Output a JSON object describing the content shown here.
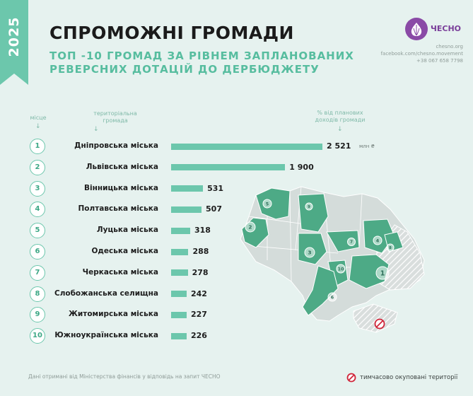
{
  "header": {
    "year": "2025",
    "title": "СПРОМОЖНІ ГРОМАДИ",
    "subtitle_line1": "ТОП -10 ГРОМАД ЗА РІВНЕМ ЗАПЛАНОВАНИХ",
    "subtitle_line2": "РЕВЕРСНИХ ДОТАЦІЙ ДО ДЕРБЮДЖЕТУ"
  },
  "brand": {
    "logo_text": "ЧЕСНО",
    "website": "chesno.org",
    "facebook": "facebook.com/chesno.movement",
    "phone": "+38 067 658 7798"
  },
  "columns": {
    "rank": "місце",
    "community_line1": "територіальна",
    "community_line2": "громада",
    "percent_line1": "% від планових",
    "percent_line2": "доходів громади"
  },
  "chart_data": {
    "type": "bar",
    "orientation": "horizontal",
    "categories": [
      "Дніпровська міська",
      "Львівська міська",
      "Вінницька міська",
      "Полтавська міська",
      "Луцька міська",
      "Одеська міська",
      "Черкаська міська",
      "Слобожанська селищна",
      "Житомирська міська",
      "Южноукраїнська міська"
    ],
    "ranks": [
      "1",
      "2",
      "3",
      "4",
      "5",
      "6",
      "7",
      "8",
      "9",
      "10"
    ],
    "values": [
      2521,
      1900,
      531,
      507,
      318,
      288,
      278,
      242,
      227,
      226
    ],
    "value_labels": [
      "2 521",
      "1 900",
      "531",
      "507",
      "318",
      "288",
      "278",
      "242",
      "227",
      "226"
    ],
    "unit": "млн ₴",
    "map_markers": [
      "1",
      "2",
      "3",
      "4",
      "5",
      "6",
      "7",
      "8",
      "9",
      "10"
    ]
  },
  "colors": {
    "accent": "#6cc7ac",
    "background": "#e6f2ef",
    "map_base": "#d4dcda",
    "brand": "#8a4aa6",
    "occupied": "#d0253a"
  },
  "footer": {
    "source": "Дані отримані від Міністерства фінансів у відповідь на запит ЧЕСНО",
    "legend_occupied": "тимчасово окуповані території"
  }
}
